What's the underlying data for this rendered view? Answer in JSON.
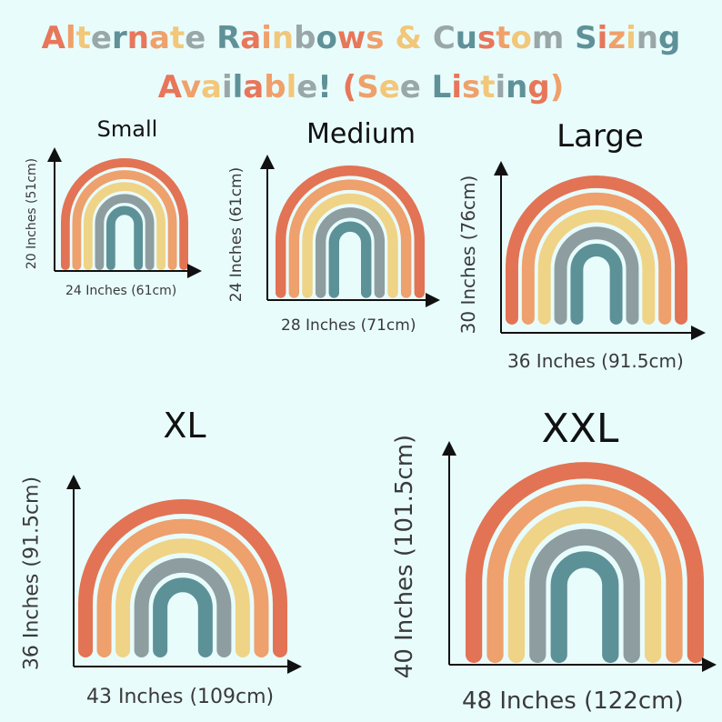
{
  "headline": {
    "line1": "Alternate Rainbows & Custom Sizing",
    "line2": "Available! (See Listing)",
    "palette": [
      "#e8765a",
      "#f0a06a",
      "#f2c77a",
      "#9aa7a8",
      "#5e9198"
    ]
  },
  "rainbow_colors": [
    "#e27354",
    "#eea06d",
    "#efd387",
    "#8e9ea0",
    "#5d9198"
  ],
  "axis_icon": "axis-arrow-icon",
  "sizes": [
    {
      "id": "small",
      "label": "Small",
      "width": "24 Inches (61cm)",
      "height": "20 Inches (51cm)"
    },
    {
      "id": "medium",
      "label": "Medium",
      "width": "28 Inches (71cm)",
      "height": "24 Inches (61cm)"
    },
    {
      "id": "large",
      "label": "Large",
      "width": "36 Inches (91.5cm)",
      "height": "30 Inches (76cm)"
    },
    {
      "id": "xl",
      "label": "XL",
      "width": "43 Inches (109cm)",
      "height": "36 Inches (91.5cm)"
    },
    {
      "id": "xxl",
      "label": "XXL",
      "width": "48 Inches (122cm)",
      "height": "40 Inches (101.5cm)"
    }
  ]
}
